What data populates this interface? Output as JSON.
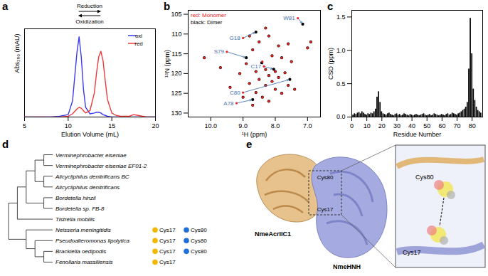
{
  "panel_labels": [
    "a",
    "b",
    "c",
    "d",
    "e"
  ],
  "chart_data": [
    {
      "type": "line",
      "xlabel": "Elution Volume (mL)",
      "ylabel": "Abs₂₈₀ (mAU)",
      "x": [
        5,
        6,
        7,
        8,
        9,
        10,
        10.5,
        11,
        11.25,
        11.5,
        11.75,
        12,
        12.5,
        13,
        13.25,
        13.5,
        13.75,
        14,
        14.25,
        14.5,
        15,
        15.5,
        16,
        17,
        17.5,
        18,
        19,
        20
      ],
      "series": [
        {
          "name": "oxi",
          "color": "#3a3af0",
          "values": [
            0,
            0,
            0,
            0,
            1,
            3,
            20,
            80,
            100,
            75,
            35,
            12,
            4,
            5,
            6,
            6,
            5,
            3,
            2,
            1,
            0,
            0,
            0,
            0,
            0,
            0,
            0,
            0
          ]
        },
        {
          "name": "red",
          "color": "#f03a3a",
          "values": [
            0,
            0,
            0,
            0,
            0,
            1,
            4,
            10,
            12,
            11,
            8,
            5,
            8,
            30,
            55,
            75,
            82,
            70,
            45,
            22,
            5,
            2,
            1,
            1,
            3,
            2,
            0,
            0
          ]
        }
      ],
      "xlim": [
        5,
        20
      ],
      "xticks": [
        5,
        10,
        15,
        20
      ],
      "ylim": [
        0,
        110
      ],
      "tick_labels": "x",
      "legend": "upper right",
      "annotations": [
        "Reduction",
        "Oxidization"
      ]
    },
    {
      "type": "scatter",
      "xlabel": "¹H (ppm)",
      "ylabel": "¹⁵N (ppm)",
      "xlim": [
        10.7,
        6.6
      ],
      "xticks": [
        10,
        9,
        8,
        7
      ],
      "ylim": [
        131,
        104
      ],
      "yticks": [
        105,
        110,
        115,
        120,
        125,
        130
      ],
      "legend": "upper left",
      "series": [
        {
          "name": "red: Monomer",
          "color": "#e8231f",
          "x": [
            8.3,
            8.2,
            8.5,
            7.9,
            7.6,
            8.7,
            8.1,
            7.8,
            8.4,
            8.9,
            7.5,
            8.0,
            8.3,
            8.6,
            7.7,
            9.1,
            8.2,
            7.9,
            8.5,
            8.1,
            8.8,
            7.6,
            8.3,
            9.4,
            8.0,
            8.6,
            7.8,
            8.4,
            9.0,
            7.4,
            8.2,
            8.7,
            10.2,
            9.7,
            6.9,
            7.0,
            8.8,
            9.0,
            9.5,
            8.35,
            9.2,
            9.0,
            7.3
          ],
          "values": [
            108.5,
            110.5,
            112,
            113,
            112.5,
            114,
            115.5,
            116,
            117,
            117.5,
            117,
            119.5,
            119,
            119.5,
            119.8,
            120,
            120.5,
            121,
            121.5,
            122,
            122.5,
            123,
            123,
            123.5,
            124,
            124.8,
            125,
            126,
            126,
            124,
            127,
            128,
            116,
            118.5,
            112,
            113.5,
            110.5,
            111,
            114.5,
            118.2,
            127.5,
            124.8,
            106
          ]
        },
        {
          "name": "black: Dimer",
          "color": "#000000",
          "x": [
            8.3,
            8.2,
            8.5,
            7.9,
            7.6,
            8.7,
            8.1,
            7.8,
            8.42,
            8.9,
            7.5,
            8.0,
            8.3,
            8.6,
            7.7,
            9.1,
            8.2,
            7.9,
            8.5,
            8.1,
            8.8,
            7.6,
            8.3,
            9.4,
            8.0,
            8.6,
            7.8,
            8.4,
            9.0,
            7.4,
            8.2,
            8.7,
            10.2,
            9.7,
            6.9,
            7.0,
            8.8,
            8.6,
            8.9,
            8.05,
            8.7,
            7.55,
            7.15
          ],
          "values": [
            108.5,
            110.5,
            112,
            113,
            112.5,
            114,
            115.5,
            116,
            117.3,
            117.5,
            117,
            119.5,
            119,
            119.5,
            119.8,
            120,
            120.5,
            121,
            121.5,
            122,
            122.5,
            123,
            123,
            123.5,
            124,
            124.8,
            125,
            126,
            126,
            124,
            127,
            128,
            116,
            118.5,
            112,
            113.5,
            110.5,
            109.5,
            116,
            118.9,
            126.6,
            121.5,
            107.5
          ]
        }
      ],
      "annotations": [
        {
          "text": "G18",
          "x": 9.0,
          "y": 111,
          "x2": 8.6,
          "y2": 109.5
        },
        {
          "text": "S79",
          "x": 9.5,
          "y": 114.5,
          "x2": 8.9,
          "y2": 116
        },
        {
          "text": "C17",
          "x": 8.35,
          "y": 118.2,
          "x2": 8.05,
          "y2": 118.9
        },
        {
          "text": "A78",
          "x": 9.2,
          "y": 127.5,
          "x2": 8.7,
          "y2": 126.6
        },
        {
          "text": "C80",
          "x": 9.0,
          "y": 124.8,
          "x2": 7.55,
          "y2": 121.5
        },
        {
          "text": "W81",
          "x": 7.3,
          "y": 106,
          "x2": 7.15,
          "y2": 107.5
        }
      ]
    },
    {
      "type": "bar",
      "xlabel": "Residue Number",
      "ylabel": "CSD (ppm)",
      "color": "#000000",
      "x": [
        1,
        2,
        3,
        4,
        5,
        6,
        7,
        8,
        9,
        10,
        11,
        12,
        13,
        14,
        15,
        16,
        17,
        18,
        19,
        20,
        21,
        22,
        23,
        24,
        25,
        26,
        27,
        28,
        29,
        30,
        31,
        32,
        33,
        34,
        35,
        36,
        37,
        38,
        39,
        40,
        41,
        42,
        43,
        44,
        45,
        46,
        47,
        48,
        49,
        50,
        51,
        52,
        53,
        54,
        55,
        56,
        57,
        58,
        59,
        60,
        61,
        62,
        63,
        64,
        65,
        66,
        67,
        68,
        69,
        70,
        71,
        72,
        73,
        74,
        75,
        76,
        77,
        78,
        79,
        80,
        81,
        82,
        83,
        84,
        85,
        86
      ],
      "values": [
        0.03,
        0.05,
        0.04,
        0.06,
        0.07,
        0.05,
        0.08,
        0.06,
        0.04,
        0.03,
        0.05,
        0.04,
        0.06,
        0.05,
        0.08,
        0.12,
        0.3,
        0.38,
        0.22,
        0.08,
        0.05,
        0.04,
        0.03,
        0.05,
        0.06,
        0.04,
        0.03,
        0.02,
        0.04,
        0.05,
        0.03,
        0.04,
        0.02,
        0.03,
        0.05,
        0.04,
        0.03,
        0.02,
        0.04,
        0.03,
        0.02,
        0.03,
        0.04,
        0.03,
        0.02,
        0.03,
        0.04,
        0.05,
        0.03,
        0.02,
        0.03,
        0.04,
        0.02,
        0.03,
        0.05,
        0.04,
        0.03,
        0.02,
        0.03,
        0.04,
        0.03,
        0.02,
        0.04,
        0.05,
        0.03,
        0.04,
        0.06,
        0.05,
        0.04,
        0.03,
        0.05,
        0.06,
        0.08,
        0.1,
        0.12,
        0.15,
        0.22,
        0.72,
        1.48,
        0.95,
        0.42,
        0.25,
        0.15,
        0.1,
        0.08,
        0.06
      ],
      "xlim": [
        0,
        87
      ],
      "xticks": [
        0,
        10,
        20,
        30,
        40,
        50,
        60,
        70,
        80
      ],
      "ylim": [
        0,
        1.6
      ],
      "yticks": [
        {
          "value": 0,
          "label": "0.0"
        },
        0.5,
        {
          "value": 1,
          "label": "1.0"
        },
        1.5
      ]
    }
  ],
  "tree": {
    "markers": [
      {
        "name": "Cys17",
        "color": "#f2b705"
      },
      {
        "name": "Cys80",
        "color": "#1f6fd8"
      }
    ],
    "root": {
      "children": [
        {
          "children": [
            {
              "children": [
                {
                  "children": [
                    {
                      "children": [
                        {
                          "name": "Verminephrobacter eiseniae"
                        },
                        {
                          "name": "Verminephrobacter eiseniae EF01-2"
                        }
                      ]
                    },
                    {
                      "children": [
                        {
                          "name": "Alicycliphilus denitrificans BC"
                        },
                        {
                          "name": "Alicycliphilus denitrificans"
                        }
                      ]
                    }
                  ]
                },
                {
                  "children": [
                    {
                      "name": "Bordetella hinzii"
                    },
                    {
                      "name": "Bordetella sp. FB-8"
                    }
                  ]
                }
              ]
            },
            {
              "name": "Tistrella mobilis"
            }
          ]
        },
        {
          "children": [
            {
              "name": "Neisseria meningitidis",
              "markers": [
                "Cys17",
                "Cys80"
              ]
            },
            {
              "children": [
                {
                  "name": "Pseudoalteromonas lipolytica",
                  "markers": [
                    "Cys17",
                    "Cys80"
                  ]
                },
                {
                  "children": [
                    {
                      "name": "Brackiella oedipodis",
                      "markers": [
                        "Cys17",
                        "Cys80"
                      ]
                    },
                    {
                      "name": "Fenollaria massiliensis",
                      "markers": [
                        "Cys17"
                      ]
                    }
                  ]
                }
              ]
            }
          ]
        }
      ]
    }
  },
  "structure": {
    "protein_labels": [
      "NmeAcrIIC1",
      "NmeHNH"
    ],
    "main_labels": [
      "Cys80",
      "Cys17"
    ],
    "inset_labels": [
      "Cys80",
      "Cys17"
    ]
  }
}
